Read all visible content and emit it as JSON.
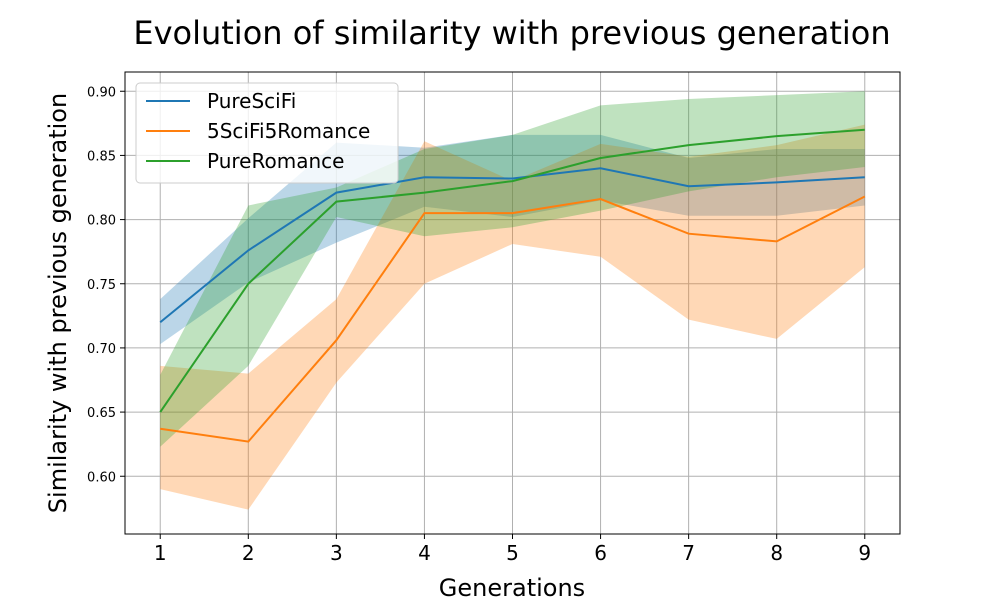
{
  "chart_data": {
    "type": "line",
    "title": "Evolution of similarity with previous generation",
    "xlabel": "Generations",
    "ylabel": "Similarity with previous generation",
    "x": [
      1,
      2,
      3,
      4,
      5,
      6,
      7,
      8,
      9
    ],
    "xlim": [
      0.6,
      9.4
    ],
    "ylim": [
      0.555,
      0.915
    ],
    "yticks": [
      0.6,
      0.65,
      0.7,
      0.75,
      0.8,
      0.85,
      0.9
    ],
    "ytick_labels": [
      "0.60",
      "0.65",
      "0.70",
      "0.75",
      "0.80",
      "0.85",
      "0.90"
    ],
    "xtick_labels": [
      "1",
      "2",
      "3",
      "4",
      "5",
      "6",
      "7",
      "8",
      "9"
    ],
    "grid": true,
    "legend_position": "upper-left",
    "series": [
      {
        "name": "PureSciFi",
        "color": "#1f77b4",
        "values": [
          0.72,
          0.776,
          0.821,
          0.833,
          0.832,
          0.84,
          0.826,
          0.829,
          0.833
        ],
        "lower": [
          0.703,
          0.751,
          0.782,
          0.81,
          0.802,
          0.815,
          0.803,
          0.803,
          0.811
        ],
        "upper": [
          0.738,
          0.801,
          0.86,
          0.856,
          0.866,
          0.866,
          0.848,
          0.855,
          0.855
        ]
      },
      {
        "name": "5SciFi5Romance",
        "color": "#ff7f0e",
        "values": [
          0.637,
          0.627,
          0.706,
          0.805,
          0.805,
          0.816,
          0.789,
          0.783,
          0.818
        ],
        "lower": [
          0.59,
          0.574,
          0.673,
          0.75,
          0.781,
          0.771,
          0.722,
          0.707,
          0.763
        ],
        "upper": [
          0.686,
          0.68,
          0.738,
          0.861,
          0.83,
          0.859,
          0.849,
          0.858,
          0.874
        ]
      },
      {
        "name": "PureRomance",
        "color": "#2ca02c",
        "values": [
          0.65,
          0.75,
          0.814,
          0.821,
          0.83,
          0.848,
          0.858,
          0.865,
          0.87
        ],
        "lower": [
          0.623,
          0.686,
          0.802,
          0.787,
          0.794,
          0.807,
          0.822,
          0.833,
          0.841
        ],
        "upper": [
          0.679,
          0.811,
          0.825,
          0.855,
          0.866,
          0.889,
          0.894,
          0.897,
          0.9
        ]
      }
    ]
  }
}
